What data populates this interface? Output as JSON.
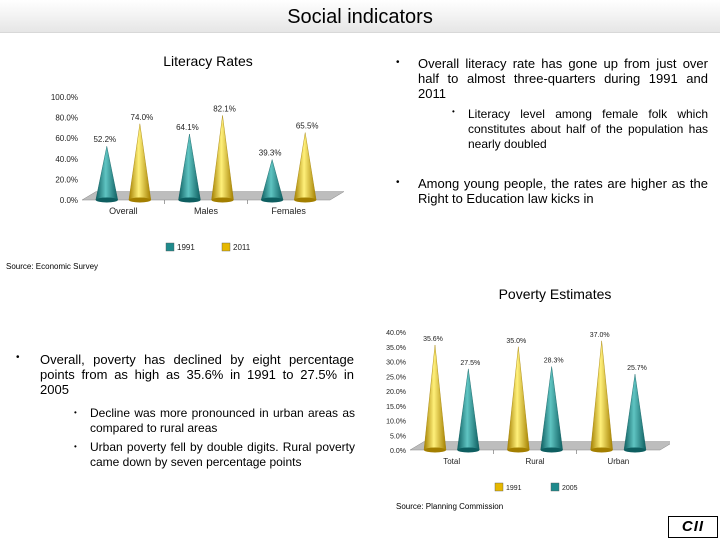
{
  "page": {
    "title": "Social indicators",
    "logo_text": "CII"
  },
  "literacy": {
    "title": "Literacy Rates",
    "source": "Source: Economic Survey",
    "bullets": [
      "Overall literacy rate has gone up from just over half to almost three-quarters during 1991 and 2011",
      "Among young people, the rates are higher as the Right to Education law kicks in"
    ],
    "sub_bullet": "Literacy level among female folk which constitutes about half of the population has nearly doubled"
  },
  "poverty": {
    "title": "Poverty Estimates",
    "source": "Source: Planning Commission",
    "bullet": "Overall, poverty has declined by eight percentage points from as high as 35.6% in 1991 to 27.5% in 2005",
    "sub_bullets": [
      "Decline was more pronounced in urban areas as compared to rural areas",
      "Urban poverty fell by double digits. Rural poverty came down by seven percentage points"
    ]
  },
  "colors": {
    "teal": "#1f8a8c",
    "gold": "#e6b800"
  },
  "chart_data": [
    {
      "type": "bar",
      "categories": [
        "Overall",
        "Males",
        "Females"
      ],
      "series": [
        {
          "name": "1991",
          "values": [
            52.2,
            64.1,
            39.3
          ],
          "labels": [
            "52.2%",
            "64.1%",
            "39.3%"
          ]
        },
        {
          "name": "2011",
          "values": [
            74.0,
            82.1,
            65.5
          ],
          "labels": [
            "74.0%",
            "82.1%",
            "65.5%"
          ]
        }
      ],
      "yticks": [
        "100.0%",
        "80.0%",
        "60.0%",
        "40.0%",
        "20.0%",
        "0.0%"
      ],
      "ylim": [
        0,
        100
      ],
      "legend": "bottom"
    },
    {
      "type": "bar",
      "categories": [
        "Total",
        "Rural",
        "Urban"
      ],
      "series": [
        {
          "name": "1991",
          "values": [
            35.6,
            35.0,
            37.0
          ],
          "labels": [
            "35.6%",
            "35.0%",
            "37.0%"
          ]
        },
        {
          "name": "2005",
          "values": [
            27.5,
            28.3,
            25.7
          ],
          "labels": [
            "27.5%",
            "28.3%",
            "25.7%"
          ]
        }
      ],
      "yticks": [
        "40.0%",
        "35.0%",
        "30.0%",
        "25.0%",
        "20.0%",
        "15.0%",
        "10.0%",
        "5.0%",
        "0.0%"
      ],
      "ylim": [
        0,
        40
      ],
      "legend": "bottom"
    }
  ]
}
